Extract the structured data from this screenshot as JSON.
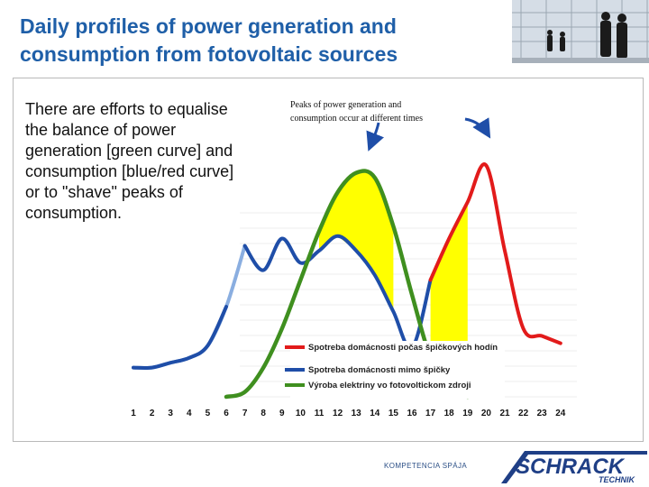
{
  "slide": {
    "title_line1": "Daily profiles of power generation and",
    "title_line2": "consumption from fotovoltaic sources",
    "body_text": "There are efforts to equalise the balance of power generation [green curve] and consumption [blue/red curve] or to \"shave\" peaks of consumption."
  },
  "footer": {
    "slogan": "KOMPETENCIA SPÁJA",
    "logo_word": "SCHRACK",
    "logo_subword": "TECHNIK"
  },
  "chart_data": {
    "type": "line",
    "x": [
      1,
      2,
      3,
      4,
      5,
      6,
      7,
      8,
      9,
      10,
      11,
      12,
      13,
      14,
      15,
      16,
      17,
      18,
      19,
      20,
      21,
      22,
      23,
      24
    ],
    "categories": [
      "1",
      "2",
      "3",
      "4",
      "5",
      "6",
      "7",
      "8",
      "9",
      "10",
      "11",
      "12",
      "13",
      "14",
      "15",
      "16",
      "17",
      "18",
      "19",
      "20",
      "21",
      "22",
      "23",
      "24"
    ],
    "annotation_line1": "Peaks of power generation and",
    "annotation_line2": "consumption occur at different times",
    "colors": {
      "generation": "#3f8f1f",
      "offpeak": "#1f4ea8",
      "peak": "#e21b1b",
      "early_consumption": "#8aaee0",
      "fill": "#ffff00"
    },
    "series": [
      {
        "name": "Výroba elektriny vo fotovoltickom zdroji",
        "role": "generation",
        "values": [
          null,
          null,
          null,
          null,
          null,
          0,
          2,
          12,
          28,
          48,
          68,
          84,
          92,
          90,
          70,
          42,
          16,
          3,
          0,
          null,
          null,
          null,
          null,
          null
        ]
      },
      {
        "name": "Spotreba domácnosti mimo špičky",
        "role": "offpeak",
        "values": [
          12,
          12,
          14,
          16,
          21,
          37,
          62,
          52,
          65,
          55,
          60,
          66,
          60,
          50,
          35,
          20,
          48,
          null,
          null,
          null,
          null,
          null,
          null,
          null
        ]
      },
      {
        "name": "Spotreba domácnosti počas špičkových hodín",
        "role": "peak",
        "values": [
          null,
          null,
          null,
          null,
          null,
          null,
          null,
          null,
          null,
          null,
          null,
          null,
          null,
          null,
          null,
          null,
          48,
          65,
          80,
          95,
          60,
          28,
          25,
          22
        ]
      }
    ],
    "ylim": [
      0,
      100
    ],
    "legend_position": "bottom-center"
  }
}
